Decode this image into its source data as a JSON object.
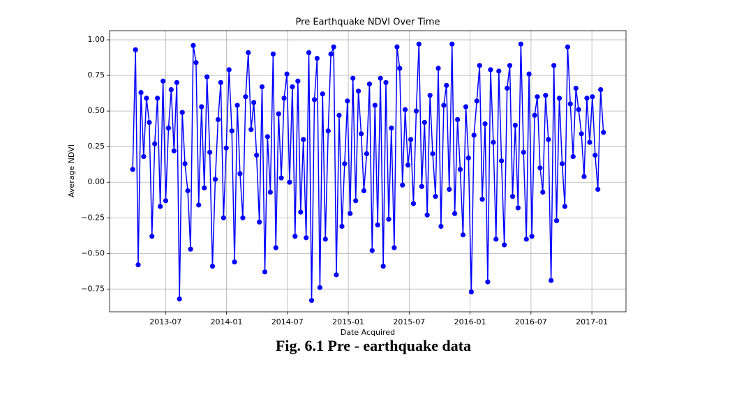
{
  "chart_data": {
    "type": "line",
    "title": "Pre Earthquake NDVI Over Time",
    "xlabel": "Date Acquired",
    "ylabel": "Average NDVI",
    "color": "#0000ff",
    "grid": true,
    "xlim": [
      2013.04,
      2017.28
    ],
    "ylim": [
      -0.91,
      1.064
    ],
    "xticks": [
      {
        "value": 2013.5,
        "label": "2013-07"
      },
      {
        "value": 2014.0,
        "label": "2014-01"
      },
      {
        "value": 2014.5,
        "label": "2014-07"
      },
      {
        "value": 2015.0,
        "label": "2015-01"
      },
      {
        "value": 2015.5,
        "label": "2015-07"
      },
      {
        "value": 2016.0,
        "label": "2016-01"
      },
      {
        "value": 2016.5,
        "label": "2016-07"
      },
      {
        "value": 2017.0,
        "label": "2017-01"
      }
    ],
    "yticks": [
      {
        "value": -0.75,
        "label": "−0.75"
      },
      {
        "value": -0.5,
        "label": "−0.50"
      },
      {
        "value": -0.25,
        "label": "−0.25"
      },
      {
        "value": 0,
        "label": "0.00"
      },
      {
        "value": 0.25,
        "label": "0.25"
      },
      {
        "value": 0.5,
        "label": "0.50"
      },
      {
        "value": 0.75,
        "label": "0.75"
      },
      {
        "value": 1.0,
        "label": "1.00"
      }
    ],
    "x": [
      2013.23,
      2013.253,
      2013.275,
      2013.298,
      2013.32,
      2013.343,
      2013.366,
      2013.388,
      2013.411,
      2013.433,
      2013.456,
      2013.479,
      2013.501,
      2013.524,
      2013.546,
      2013.569,
      2013.592,
      2013.614,
      2013.637,
      2013.659,
      2013.682,
      2013.705,
      2013.727,
      2013.75,
      2013.772,
      2013.795,
      2013.818,
      2013.84,
      2013.863,
      2013.885,
      2013.908,
      2013.931,
      2013.953,
      2013.976,
      2013.998,
      2014.021,
      2014.044,
      2014.066,
      2014.089,
      2014.111,
      2014.134,
      2014.157,
      2014.179,
      2014.202,
      2014.224,
      2014.247,
      2014.27,
      2014.292,
      2014.315,
      2014.337,
      2014.36,
      2014.383,
      2014.405,
      2014.428,
      2014.45,
      2014.473,
      2014.496,
      2014.518,
      2014.541,
      2014.563,
      2014.586,
      2014.609,
      2014.631,
      2014.654,
      2014.676,
      2014.699,
      2014.722,
      2014.744,
      2014.767,
      2014.789,
      2014.812,
      2014.835,
      2014.857,
      2014.88,
      2014.902,
      2014.925,
      2014.948,
      2014.97,
      2014.993,
      2015.015,
      2015.038,
      2015.061,
      2015.083,
      2015.106,
      2015.128,
      2015.151,
      2015.174,
      2015.196,
      2015.219,
      2015.241,
      2015.264,
      2015.287,
      2015.309,
      2015.332,
      2015.354,
      2015.377,
      2015.4,
      2015.422,
      2015.445,
      2015.467,
      2015.49,
      2015.513,
      2015.535,
      2015.558,
      2015.58,
      2015.603,
      2015.626,
      2015.648,
      2015.671,
      2015.693,
      2015.716,
      2015.739,
      2015.761,
      2015.784,
      2015.806,
      2015.829,
      2015.852,
      2015.874,
      2015.897,
      2015.919,
      2015.942,
      2015.965,
      2015.987,
      2016.01,
      2016.032,
      2016.055,
      2016.078,
      2016.1,
      2016.123,
      2016.145,
      2016.168,
      2016.191,
      2016.213,
      2016.236,
      2016.258,
      2016.281,
      2016.304,
      2016.326,
      2016.349,
      2016.371,
      2016.394,
      2016.417,
      2016.439,
      2016.462,
      2016.484,
      2016.507,
      2016.53,
      2016.552,
      2016.575,
      2016.597,
      2016.62,
      2016.643,
      2016.665,
      2016.688,
      2016.71,
      2016.733,
      2016.756,
      2016.778,
      2016.801,
      2016.823,
      2016.846,
      2016.869,
      2016.891,
      2016.914,
      2016.936,
      2016.959,
      2016.982,
      2017.004,
      2017.027,
      2017.049,
      2017.072,
      2017.095
    ],
    "values": [
      0.09,
      0.93,
      -0.58,
      0.63,
      0.18,
      0.59,
      0.42,
      -0.38,
      0.27,
      0.59,
      -0.17,
      0.71,
      -0.13,
      0.38,
      0.65,
      0.22,
      0.7,
      -0.82,
      0.49,
      0.13,
      -0.06,
      -0.47,
      0.96,
      0.84,
      -0.16,
      0.53,
      -0.04,
      0.74,
      0.21,
      -0.59,
      0.02,
      0.44,
      0.7,
      -0.25,
      0.24,
      0.79,
      0.36,
      -0.56,
      0.54,
      0.06,
      -0.25,
      0.6,
      0.91,
      0.37,
      0.56,
      0.19,
      -0.28,
      0.67,
      -0.63,
      0.32,
      -0.07,
      0.9,
      -0.46,
      0.48,
      0.03,
      0.59,
      0.76,
      0.0,
      0.67,
      -0.38,
      0.71,
      -0.21,
      0.3,
      -0.39,
      0.91,
      -0.83,
      0.58,
      0.87,
      -0.74,
      0.62,
      -0.4,
      0.36,
      0.9,
      0.95,
      -0.65,
      0.47,
      -0.31,
      0.13,
      0.57,
      -0.22,
      0.73,
      -0.13,
      0.64,
      0.34,
      -0.06,
      0.2,
      0.69,
      -0.48,
      0.54,
      -0.3,
      0.73,
      -0.59,
      0.7,
      -0.26,
      0.38,
      -0.46,
      0.95,
      0.8,
      -0.02,
      0.51,
      0.12,
      0.3,
      -0.15,
      0.5,
      0.97,
      -0.03,
      0.42,
      -0.23,
      0.61,
      0.2,
      -0.1,
      0.8,
      -0.31,
      0.54,
      0.68,
      -0.05,
      0.97,
      -0.22,
      0.44,
      0.09,
      -0.37,
      0.53,
      0.17,
      -0.77,
      0.33,
      0.57,
      0.82,
      -0.12,
      0.41,
      -0.7,
      0.79,
      0.28,
      -0.4,
      0.78,
      0.15,
      -0.44,
      0.66,
      0.82,
      -0.1,
      0.4,
      -0.18,
      0.97,
      0.21,
      -0.4,
      0.76,
      -0.38,
      0.47,
      0.6,
      0.1,
      -0.07,
      0.61,
      0.3,
      -0.69,
      0.82,
      -0.27,
      0.59,
      0.13,
      -0.17,
      0.95,
      0.55,
      0.18,
      0.66,
      0.51,
      0.34,
      0.04,
      0.59,
      0.28,
      0.6,
      0.19,
      -0.05,
      0.65,
      0.35
    ]
  },
  "caption": "Fig. 6.1 Pre - earthquake data"
}
